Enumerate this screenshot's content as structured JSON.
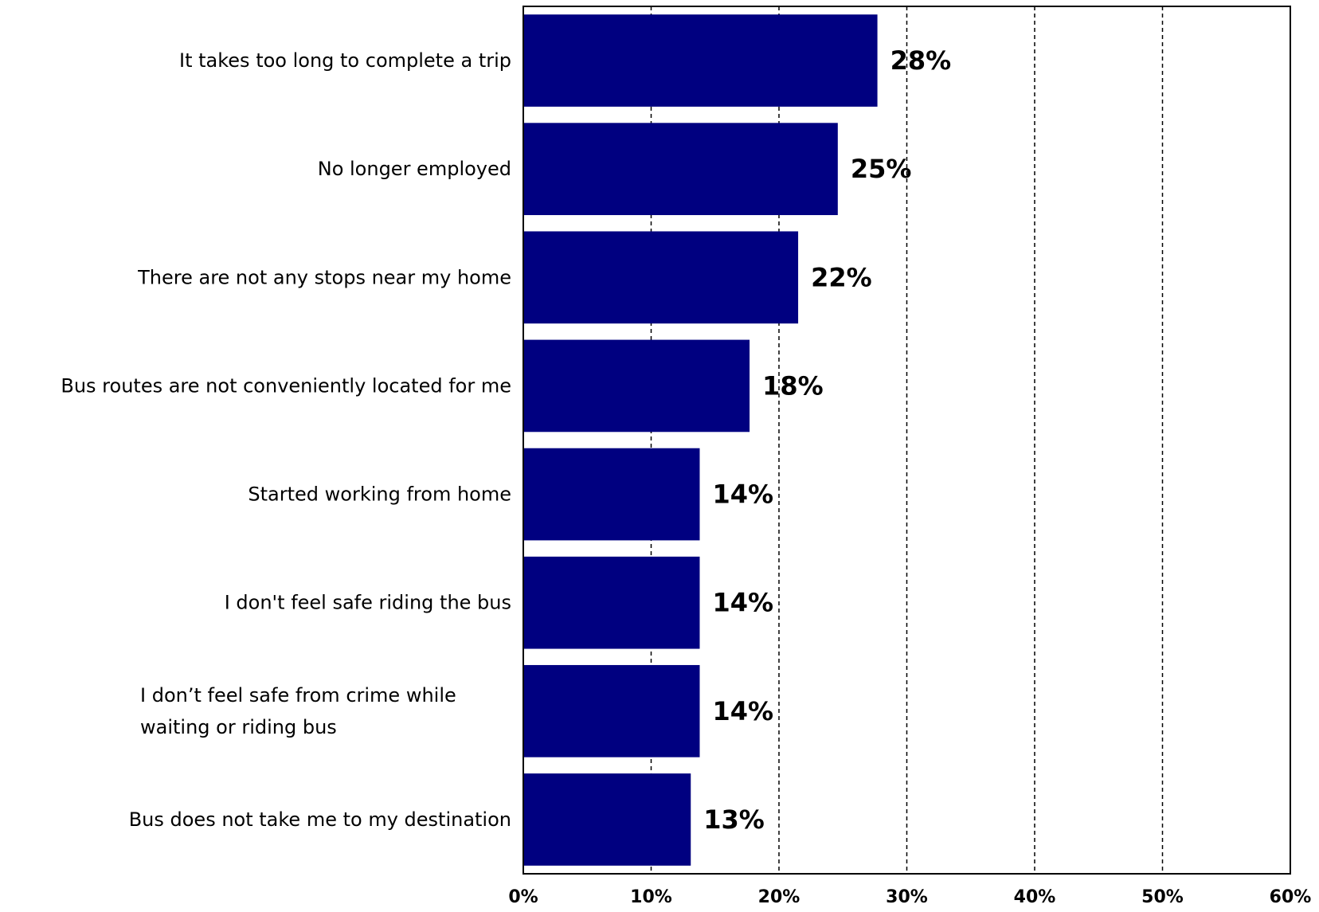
{
  "chart_data": {
    "type": "bar",
    "orientation": "horizontal",
    "categories": [
      "It takes too long to complete a trip",
      "No longer employed",
      "There are not any stops near my home",
      "Bus routes are not conveniently located for me",
      "Started working from home",
      "I don't feel safe riding the bus",
      "I don’t feel safe from crime while waiting or riding bus",
      "Bus does not take me to my destination"
    ],
    "category_lines": [
      [
        "It takes too long to complete a trip"
      ],
      [
        "No longer employed"
      ],
      [
        "There are not any stops near my home"
      ],
      [
        "Bus routes are not conveniently located for me"
      ],
      [
        "Started working from home"
      ],
      [
        "I don't feel safe riding the bus"
      ],
      [
        "I don’t feel safe from crime while",
        "waiting or riding bus"
      ],
      [
        "Bus does not take me to my destination"
      ]
    ],
    "values": [
      27.7,
      24.6,
      21.5,
      17.7,
      13.8,
      13.8,
      13.8,
      13.1
    ],
    "value_labels": [
      "28%",
      "25%",
      "22%",
      "18%",
      "14%",
      "14%",
      "14%",
      "13%"
    ],
    "xlim": [
      0,
      60
    ],
    "xticks": [
      0,
      10,
      20,
      30,
      40,
      50,
      60
    ],
    "xtick_labels": [
      "0%",
      "10%",
      "20%",
      "30%",
      "40%",
      "50%",
      "60%"
    ],
    "grid": "vertical dashed",
    "bar_color": "#000080",
    "title": "",
    "xlabel": "",
    "ylabel": ""
  }
}
